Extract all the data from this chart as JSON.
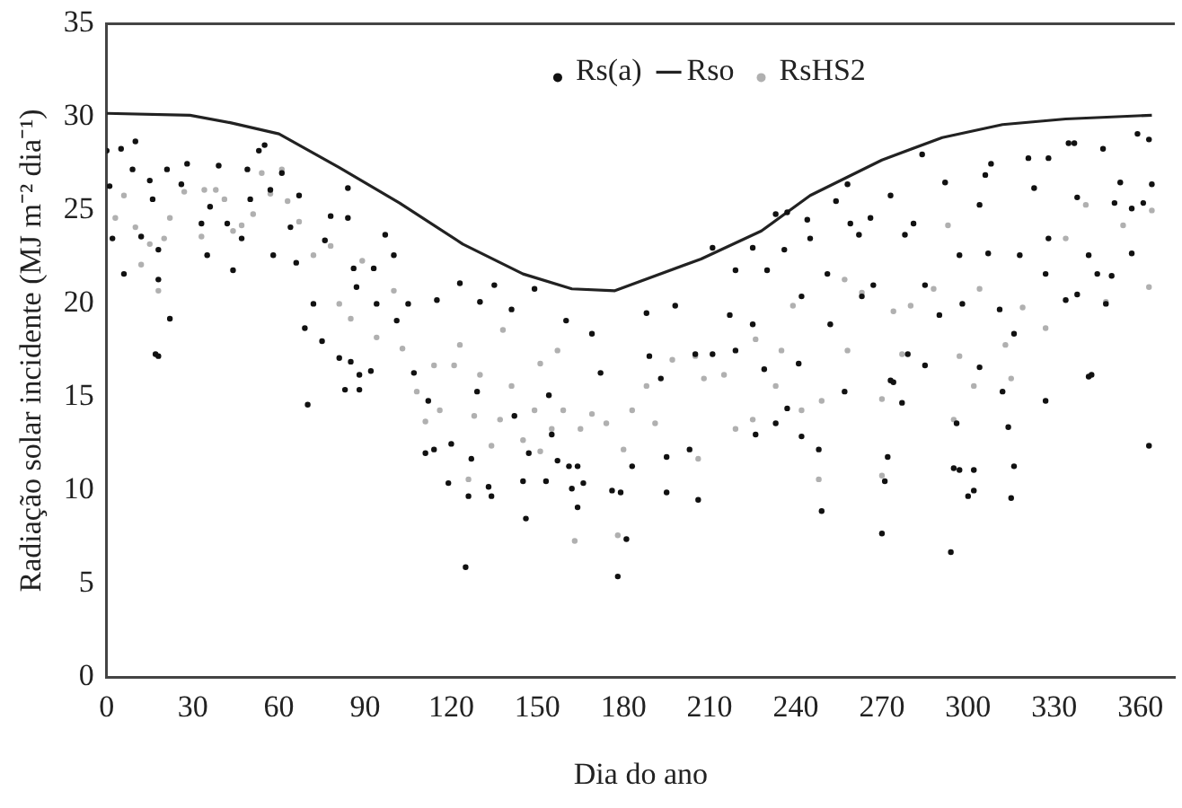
{
  "chart_data": {
    "type": "scatter",
    "xlabel": "Dia do ano",
    "ylabel": "Radiação solar incidente (MJ m⁻² dia⁻¹)",
    "xlim": [
      0,
      372
    ],
    "xticks": [
      0,
      30,
      60,
      90,
      120,
      150,
      180,
      210,
      240,
      270,
      300,
      330,
      360
    ],
    "ylim": [
      0,
      35
    ],
    "yticks": [
      0,
      5,
      10,
      15,
      20,
      25,
      30,
      35
    ],
    "grid": false,
    "legend": "top",
    "marker": "circle",
    "series": [
      {
        "name": "Rs(a)",
        "color": "#111111",
        "x": [
          0,
          1,
          5,
          10,
          2,
          6,
          9,
          12,
          15,
          16,
          18,
          18,
          22,
          17,
          21,
          26,
          28,
          33,
          35,
          36,
          39,
          42,
          44,
          47,
          49,
          50,
          53,
          55,
          57,
          61,
          58,
          64,
          67,
          66,
          69,
          72,
          75,
          76,
          78,
          84,
          84,
          86,
          87,
          93,
          94,
          97,
          100,
          101,
          105,
          115,
          123,
          130,
          135,
          141,
          149,
          160,
          18,
          70,
          81,
          83,
          85,
          88,
          88,
          92,
          107,
          111,
          112,
          114,
          119,
          120,
          125,
          126,
          127,
          129,
          133,
          134,
          142,
          145,
          146,
          147,
          153,
          154,
          155,
          157,
          161,
          162,
          164,
          166,
          164,
          176,
          178,
          179,
          181,
          183,
          195,
          195,
          203,
          206,
          226,
          233,
          237,
          242,
          248,
          249,
          257,
          270,
          271,
          272,
          274,
          277,
          294,
          295,
          297,
          296,
          300,
          302,
          302,
          304,
          312,
          314,
          315,
          316,
          327,
          342,
          363,
          284,
          258,
          254,
          273,
          292,
          306,
          308,
          321,
          328,
          335,
          337,
          347,
          359,
          363,
          364,
          353,
          323,
          338,
          351,
          357,
          361,
          233,
          237,
          244,
          245,
          259,
          262,
          278,
          266,
          281,
          297,
          304,
          307,
          318,
          328,
          342,
          357,
          345,
          327,
          350,
          285,
          267,
          251,
          236,
          230,
          225,
          219,
          211,
          188,
          198,
          217,
          225,
          242,
          263,
          252,
          290,
          298,
          311,
          334,
          338,
          348,
          316,
          169,
          189,
          205,
          211,
          219,
          279,
          285,
          172,
          193,
          229,
          241,
          273,
          343
        ],
        "values": [
          28.2,
          26.3,
          28.3,
          28.7,
          23.5,
          21.6,
          27.2,
          23.6,
          26.6,
          25.6,
          22.9,
          21.3,
          19.2,
          17.3,
          27.2,
          26.4,
          27.5,
          24.3,
          22.6,
          25.2,
          27.4,
          24.3,
          21.8,
          23.5,
          27.2,
          25.6,
          28.2,
          28.5,
          26.1,
          27.0,
          22.6,
          24.1,
          25.8,
          22.2,
          18.7,
          20.0,
          18.0,
          23.4,
          24.7,
          26.2,
          24.6,
          21.9,
          20.9,
          21.9,
          20.0,
          23.7,
          22.6,
          19.1,
          20.0,
          20.2,
          21.1,
          20.1,
          21.0,
          19.7,
          20.8,
          19.1,
          17.2,
          14.6,
          17.1,
          15.4,
          16.9,
          15.4,
          16.2,
          16.4,
          16.3,
          12.0,
          14.8,
          12.2,
          10.4,
          12.5,
          5.9,
          9.7,
          11.7,
          15.3,
          10.2,
          9.7,
          14.0,
          10.5,
          8.5,
          12.0,
          10.5,
          15.1,
          13.0,
          11.6,
          11.3,
          10.1,
          11.3,
          10.4,
          9.1,
          10.0,
          5.4,
          9.9,
          7.4,
          11.3,
          11.8,
          9.9,
          12.2,
          9.5,
          13.0,
          13.6,
          14.4,
          12.9,
          12.2,
          8.9,
          15.3,
          7.7,
          10.5,
          11.8,
          15.8,
          14.7,
          6.7,
          11.2,
          11.1,
          13.6,
          9.7,
          10.0,
          11.1,
          16.6,
          15.3,
          13.4,
          9.6,
          11.3,
          14.8,
          16.1,
          12.4,
          28.0,
          26.4,
          25.5,
          25.8,
          26.5,
          26.9,
          27.5,
          27.8,
          27.8,
          28.6,
          28.6,
          28.3,
          29.1,
          28.8,
          26.4,
          26.5,
          26.2,
          25.7,
          25.4,
          25.1,
          25.4,
          24.8,
          24.9,
          24.5,
          23.5,
          24.3,
          23.7,
          23.7,
          24.6,
          24.3,
          22.6,
          25.3,
          22.7,
          22.6,
          23.5,
          22.6,
          22.7,
          21.6,
          21.6,
          21.5,
          21.0,
          21.0,
          21.6,
          22.9,
          21.8,
          23.0,
          21.8,
          23.0,
          19.5,
          19.9,
          19.4,
          18.9,
          20.4,
          20.4,
          18.9,
          19.4,
          20.0,
          19.7,
          20.2,
          20.5,
          20.0,
          18.4,
          18.4,
          17.2,
          17.3,
          17.3,
          17.5,
          17.3,
          16.7,
          16.3,
          16.0,
          16.5,
          16.8,
          15.9,
          16.2
        ]
      },
      {
        "name": "Rso",
        "type": "line",
        "marker": "none",
        "color": "#222222",
        "x": [
          0,
          29,
          43,
          60,
          81,
          102,
          124,
          145,
          162,
          177,
          207,
          228,
          245,
          270,
          291,
          312,
          334,
          364
        ],
        "values": [
          30.2,
          30.1,
          29.7,
          29.1,
          27.3,
          25.4,
          23.2,
          21.6,
          20.8,
          20.7,
          22.4,
          23.9,
          25.8,
          27.7,
          28.9,
          29.6,
          29.9,
          30.1
        ]
      },
      {
        "name": "RsHS2",
        "color": "#b0b0b0",
        "x": [
          6,
          3,
          10,
          12,
          15,
          20,
          22,
          18,
          27,
          33,
          34,
          38,
          41,
          44,
          47,
          51,
          54,
          57,
          61,
          63,
          67,
          72,
          78,
          81,
          85,
          89,
          94,
          100,
          103,
          114,
          123,
          130,
          138,
          151,
          157,
          108,
          111,
          116,
          121,
          126,
          128,
          134,
          137,
          141,
          145,
          149,
          151,
          155,
          159,
          163,
          165,
          169,
          174,
          178,
          180,
          183,
          188,
          191,
          197,
          206,
          208,
          215,
          219,
          225,
          233,
          242,
          249,
          248,
          270,
          270,
          277,
          295,
          302,
          315,
          257,
          263,
          274,
          293,
          304,
          319,
          334,
          341,
          354,
          364,
          363,
          348,
          327,
          288,
          280,
          239,
          226,
          205,
          235,
          297,
          313,
          258
        ],
        "values": [
          25.8,
          24.6,
          24.1,
          22.1,
          23.2,
          23.5,
          24.6,
          20.7,
          26.0,
          23.6,
          26.1,
          26.1,
          25.6,
          23.9,
          24.2,
          24.8,
          27.0,
          25.9,
          27.2,
          25.5,
          24.4,
          22.6,
          23.1,
          20.0,
          19.2,
          22.3,
          18.2,
          20.7,
          17.6,
          16.7,
          17.8,
          16.2,
          18.6,
          16.8,
          17.5,
          15.3,
          13.7,
          14.3,
          16.7,
          10.6,
          14.0,
          12.4,
          13.8,
          15.6,
          12.7,
          14.3,
          12.1,
          13.3,
          14.3,
          7.3,
          13.3,
          14.1,
          13.6,
          7.6,
          12.2,
          14.3,
          15.6,
          13.6,
          17.0,
          11.7,
          16.0,
          16.2,
          13.3,
          13.8,
          15.6,
          14.3,
          14.8,
          10.6,
          14.9,
          10.8,
          17.3,
          13.8,
          15.6,
          16.0,
          21.3,
          20.6,
          19.6,
          24.2,
          20.8,
          19.8,
          23.5,
          25.3,
          24.2,
          25.0,
          20.9,
          20.1,
          18.7,
          20.8,
          19.9,
          19.9,
          18.1,
          17.2,
          17.5,
          17.2,
          17.8,
          17.5
        ]
      }
    ]
  }
}
